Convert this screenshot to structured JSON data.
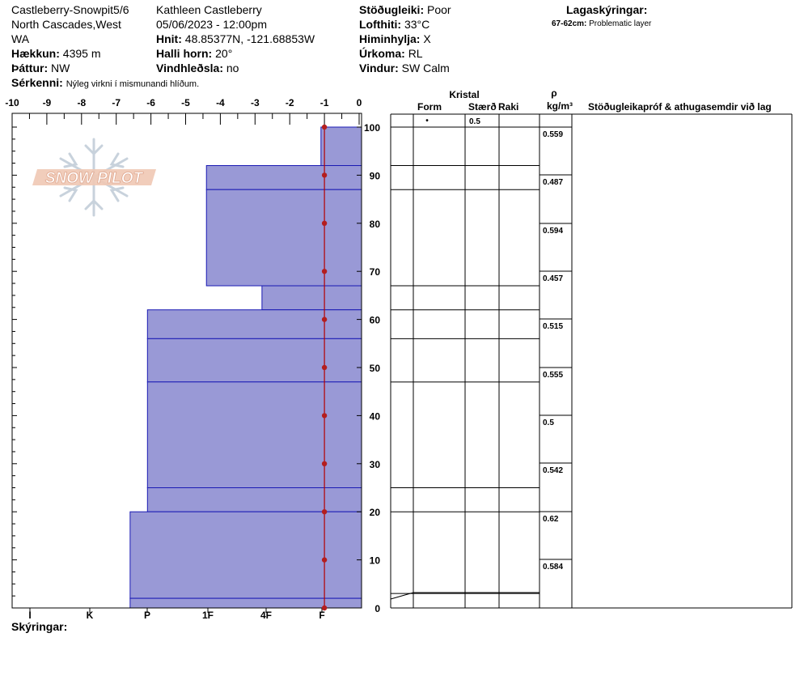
{
  "header": {
    "site": "Castleberry-Snowpit5/6",
    "location_line1": "North Cascades,West",
    "location_line2": "WA",
    "elevation_label": "Hækkun:",
    "elevation_value": "4395 m",
    "aspect_label": "Þáttur:",
    "aspect_value": "NW",
    "observer": "Kathleen Castleberry",
    "datetime": "05/06/2023 - 12:00pm",
    "coords_label": "Hnit:",
    "coords_value": "48.85377N, -121.68853W",
    "slope_label": "Halli horn:",
    "slope_value": "20°",
    "wind_loading_label": "Vindhleðsla:",
    "wind_loading_value": "no",
    "stability_label": "Stöðugleiki:",
    "stability_value": "Poor",
    "air_temp_label": "Lofthiti:",
    "air_temp_value": "33°C",
    "sky_label": "Himinhylja:",
    "sky_value": "X",
    "precip_label": "Úrkoma:",
    "precip_value": "RL",
    "wind_label": "Vindur:",
    "wind_value": "SW Calm",
    "notes_label": "Sérkenni:",
    "notes_value": "Nýleg virkni í mismunandi hlíðum.",
    "legend_title": "Lagaskýringar:",
    "legend_range": "67-62cm:",
    "legend_text": "Problematic layer",
    "footer_label": "Skýringar:"
  },
  "logo_text": "SNOW PILOT",
  "table_headers": {
    "crystal": "Kristal",
    "form": "Form",
    "size": "Stærð",
    "moisture": "Raki",
    "rho": "ρ",
    "density_unit": "kg/m³",
    "comments": "Stöðugleikapróf & athugasemdir við lag"
  },
  "table_rows": {
    "first_form": "•",
    "first_size": "0.5"
  },
  "colors": {
    "layer_fill": "#9999d6",
    "layer_line": "#1a1ab4",
    "temp_line": "#b40000",
    "temp_dot": "#b41e1e"
  },
  "chart_data": {
    "type": "snow-profile",
    "temp_axis": {
      "ticks": [
        -10,
        -9,
        -8,
        -7,
        -6,
        -5,
        -4,
        -3,
        -2,
        -1,
        0
      ],
      "range": [
        -10,
        0
      ]
    },
    "depth_axis": {
      "ticks": [
        0,
        10,
        20,
        30,
        40,
        50,
        60,
        70,
        80,
        90,
        100
      ],
      "range": [
        0,
        100
      ]
    },
    "hardness_axis": {
      "labels": [
        "I",
        "K",
        "P",
        "1F",
        "4F",
        "F"
      ]
    },
    "layers": [
      {
        "top": 100,
        "bottom": 92,
        "hardness_temp": -1.1
      },
      {
        "top": 92,
        "bottom": 87,
        "hardness_temp": -4.4
      },
      {
        "top": 87,
        "bottom": 67,
        "hardness_temp": -4.4
      },
      {
        "top": 67,
        "bottom": 62,
        "hardness_temp": -2.8
      },
      {
        "top": 62,
        "bottom": 56,
        "hardness_temp": -6.1
      },
      {
        "top": 56,
        "bottom": 47,
        "hardness_temp": -6.1
      },
      {
        "top": 47,
        "bottom": 25,
        "hardness_temp": -6.1
      },
      {
        "top": 25,
        "bottom": 20,
        "hardness_temp": -6.1
      },
      {
        "top": 20,
        "bottom": 2,
        "hardness_temp": -6.6
      },
      {
        "top": 2,
        "bottom": 0,
        "hardness_temp": -6.6
      }
    ],
    "temperature_profile": [
      {
        "depth": 100,
        "temp": -1
      },
      {
        "depth": 90,
        "temp": -1
      },
      {
        "depth": 80,
        "temp": -1
      },
      {
        "depth": 70,
        "temp": -1
      },
      {
        "depth": 60,
        "temp": -1
      },
      {
        "depth": 50,
        "temp": -1
      },
      {
        "depth": 40,
        "temp": -1
      },
      {
        "depth": 30,
        "temp": -1
      },
      {
        "depth": 20,
        "temp": -1
      },
      {
        "depth": 10,
        "temp": -1
      },
      {
        "depth": 0,
        "temp": -1
      }
    ],
    "densities": [
      {
        "depth": 99,
        "value": "0.559"
      },
      {
        "depth": 89,
        "value": "0.487"
      },
      {
        "depth": 79,
        "value": "0.594"
      },
      {
        "depth": 69,
        "value": "0.457"
      },
      {
        "depth": 59,
        "value": "0.515"
      },
      {
        "depth": 49,
        "value": "0.555"
      },
      {
        "depth": 39,
        "value": "0.5"
      },
      {
        "depth": 29,
        "value": "0.542"
      },
      {
        "depth": 19,
        "value": "0.62"
      },
      {
        "depth": 9,
        "value": "0.584"
      }
    ]
  }
}
